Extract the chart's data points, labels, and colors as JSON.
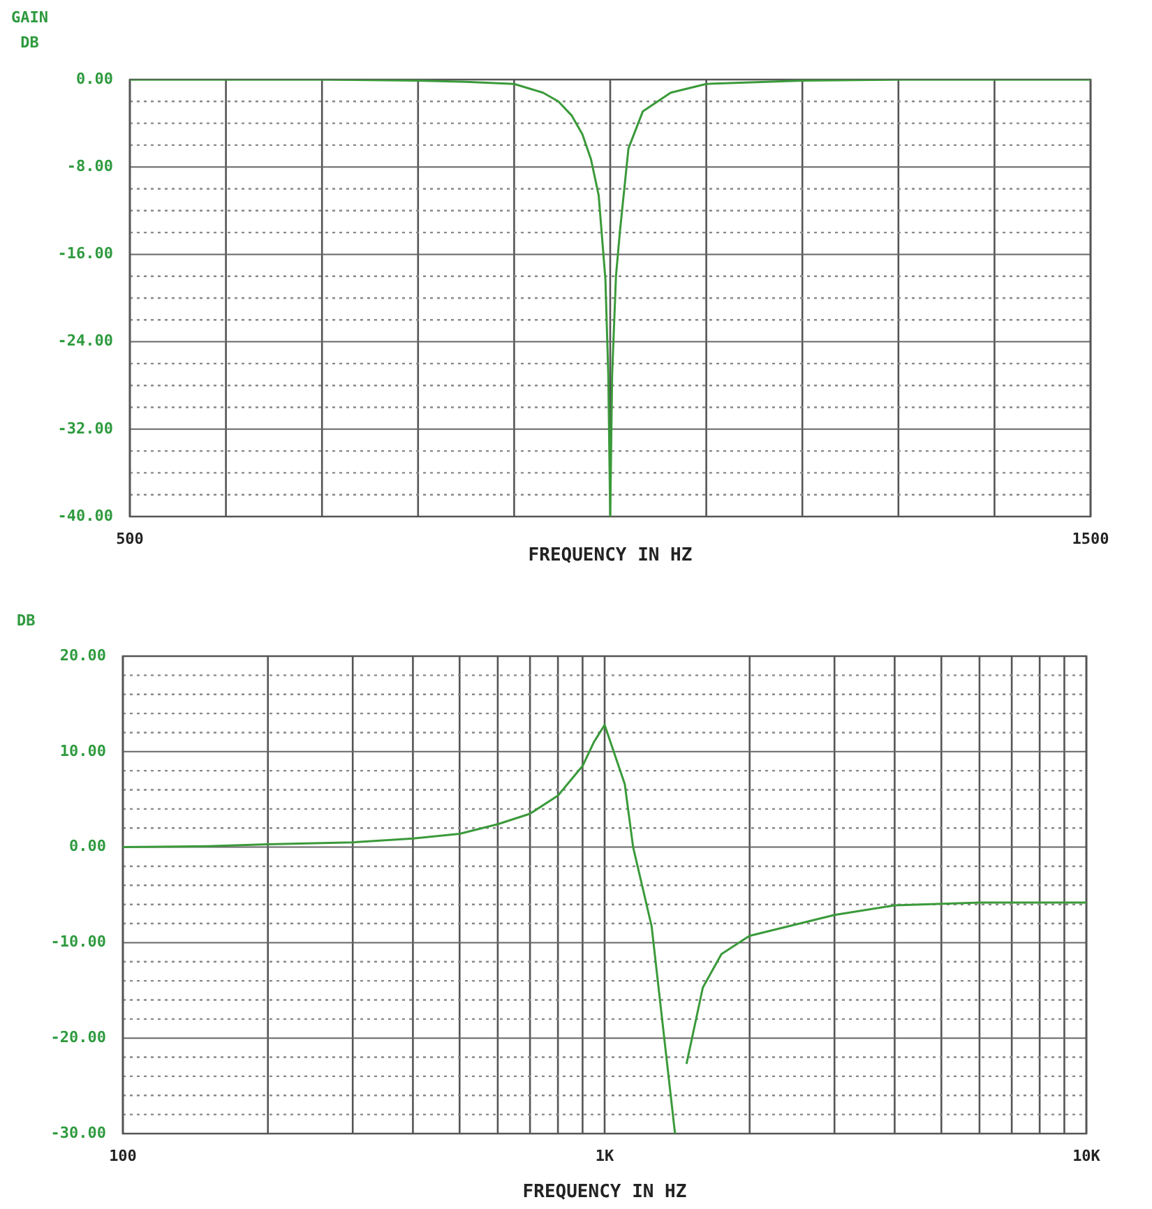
{
  "chart_data": [
    {
      "type": "line",
      "xlabel": "FREQUENCY IN HZ",
      "ylabel": "GAIN\nDB",
      "marker": "none",
      "line_style": "solid",
      "grid": true,
      "x": [
        500,
        700,
        800,
        850,
        900,
        930,
        946,
        960,
        971,
        980,
        988,
        995,
        998,
        1000,
        1002,
        1006,
        1010,
        1019,
        1034,
        1063,
        1100,
        1200,
        1300,
        1500
      ],
      "series": [
        {
          "color": "#3a9a3a",
          "values": [
            0,
            0,
            -0.1,
            -0.2,
            -0.4,
            -1.2,
            -2,
            -3.3,
            -5,
            -7.3,
            -10.6,
            -18.3,
            -27,
            -40,
            -27,
            -18,
            -14,
            -6.3,
            -2.9,
            -1.2,
            -0.4,
            -0.1,
            0,
            0
          ]
        }
      ],
      "xlim": [
        500,
        1500
      ],
      "xticks": [
        500,
        {
          "value": 600,
          "label": null
        },
        {
          "value": 700,
          "label": null
        },
        {
          "value": 800,
          "label": null
        },
        {
          "value": 900,
          "label": null
        },
        {
          "value": 1000,
          "label": null
        },
        {
          "value": 1100,
          "label": null
        },
        {
          "value": 1200,
          "label": null
        },
        {
          "value": 1300,
          "label": null
        },
        {
          "value": 1400,
          "label": null
        },
        1500
      ],
      "ylim": [
        -40,
        0
      ],
      "yticks": [
        {
          "value": -40,
          "label": "-40.00"
        },
        {
          "value": -38,
          "label": null
        },
        {
          "value": -36,
          "label": null
        },
        {
          "value": -34,
          "label": null
        },
        {
          "value": -32,
          "label": "-32.00"
        },
        {
          "value": -30,
          "label": null
        },
        {
          "value": -28,
          "label": null
        },
        {
          "value": -26,
          "label": null
        },
        {
          "value": -24,
          "label": "-24.00"
        },
        {
          "value": -22,
          "label": null
        },
        {
          "value": -20,
          "label": null
        },
        {
          "value": -18,
          "label": null
        },
        {
          "value": -16,
          "label": "-16.00"
        },
        {
          "value": -14,
          "label": null
        },
        {
          "value": -12,
          "label": null
        },
        {
          "value": -10,
          "label": null
        },
        {
          "value": -8,
          "label": "-8.00"
        },
        {
          "value": -6,
          "label": null
        },
        {
          "value": -4,
          "label": null
        },
        {
          "value": -2,
          "label": null
        },
        {
          "value": 0,
          "label": "0.00"
        }
      ]
    },
    {
      "type": "line",
      "xlabel": "FREQUENCY IN HZ",
      "ylabel": "DB",
      "marker": "none",
      "line_style": "solid",
      "grid": true,
      "log": "x",
      "x": [
        100,
        150,
        200,
        300,
        400,
        500,
        600,
        700,
        800,
        900,
        950,
        1000,
        1101,
        1146,
        1252,
        1400,
        1440,
        1479,
        1599,
        1748,
        1998,
        3000,
        4000,
        6000,
        10000
      ],
      "series": [
        {
          "color": "#3a9a3a",
          "values": [
            0,
            0.1,
            0.3,
            0.5,
            0.9,
            1.4,
            2.4,
            3.5,
            5.4,
            8.5,
            11,
            12.8,
            6.6,
            0,
            -8.3,
            -30,
            null,
            -22.7,
            -14.7,
            -11.2,
            -9.3,
            -7.1,
            -6.1,
            -5.8,
            -5.8
          ]
        }
      ],
      "xlim": [
        100,
        10000
      ],
      "xticks": [
        100,
        {
          "value": 200,
          "label": null
        },
        {
          "value": 300,
          "label": null
        },
        {
          "value": 400,
          "label": null
        },
        {
          "value": 500,
          "label": null
        },
        {
          "value": 600,
          "label": null
        },
        {
          "value": 700,
          "label": null
        },
        {
          "value": 800,
          "label": null
        },
        {
          "value": 900,
          "label": null
        },
        {
          "value": 1000,
          "label": "1K"
        },
        {
          "value": 2000,
          "label": null
        },
        {
          "value": 3000,
          "label": null
        },
        {
          "value": 4000,
          "label": null
        },
        {
          "value": 5000,
          "label": null
        },
        {
          "value": 6000,
          "label": null
        },
        {
          "value": 7000,
          "label": null
        },
        {
          "value": 8000,
          "label": null
        },
        {
          "value": 9000,
          "label": null
        },
        {
          "value": 10000,
          "label": "10K"
        }
      ],
      "ylim": [
        -30,
        20
      ],
      "yticks": [
        {
          "value": -30,
          "label": "-30.00"
        },
        {
          "value": -28,
          "label": null
        },
        {
          "value": -26,
          "label": null
        },
        {
          "value": -24,
          "label": null
        },
        {
          "value": -22,
          "label": null
        },
        {
          "value": -20,
          "label": "-20.00"
        },
        {
          "value": -18,
          "label": null
        },
        {
          "value": -16,
          "label": null
        },
        {
          "value": -14,
          "label": null
        },
        {
          "value": -12,
          "label": null
        },
        {
          "value": -10,
          "label": "-10.00"
        },
        {
          "value": -8,
          "label": null
        },
        {
          "value": -6,
          "label": null
        },
        {
          "value": -4,
          "label": null
        },
        {
          "value": -2,
          "label": null
        },
        {
          "value": 0,
          "label": "0.00"
        },
        {
          "value": 2,
          "label": null
        },
        {
          "value": 4,
          "label": null
        },
        {
          "value": 6,
          "label": null
        },
        {
          "value": 8,
          "label": null
        },
        {
          "value": 10,
          "label": "10.00"
        },
        {
          "value": 12,
          "label": null
        },
        {
          "value": 14,
          "label": null
        },
        {
          "value": 16,
          "label": null
        },
        {
          "value": 18,
          "label": null
        },
        {
          "value": 20,
          "label": "20.00"
        }
      ]
    }
  ]
}
